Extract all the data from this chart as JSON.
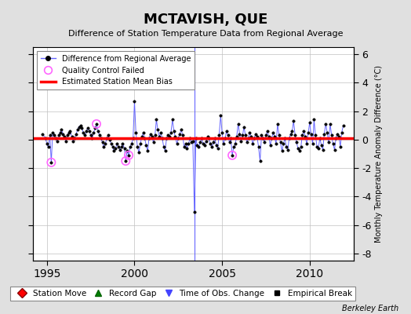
{
  "title": "MCTAVISH, QUE",
  "subtitle": "Difference of Station Temperature Data from Regional Average",
  "ylabel_right": "Monthly Temperature Anomaly Difference (°C)",
  "xlim": [
    1994.2,
    2012.5
  ],
  "ylim": [
    -8.5,
    6.5
  ],
  "yticks": [
    -8,
    -6,
    -4,
    -2,
    0,
    2,
    4,
    6
  ],
  "xticks": [
    1995,
    2000,
    2005,
    2010
  ],
  "background_color": "#e0e0e0",
  "plot_bg_color": "#ffffff",
  "grid_color": "#c0c0c0",
  "bias_value": 0.08,
  "time_of_obs_change_year": 2003.42,
  "qc_failed_points": [
    [
      1995.25,
      -1.6
    ],
    [
      1997.83,
      1.1
    ],
    [
      1999.5,
      -1.5
    ],
    [
      1999.67,
      -1.1
    ],
    [
      2005.58,
      -1.1
    ]
  ],
  "data": [
    [
      1994.75,
      0.4
    ],
    [
      1994.92,
      0.1
    ],
    [
      1995.0,
      -0.3
    ],
    [
      1995.08,
      -0.5
    ],
    [
      1995.17,
      0.3
    ],
    [
      1995.25,
      -1.6
    ],
    [
      1995.33,
      0.5
    ],
    [
      1995.42,
      0.3
    ],
    [
      1995.5,
      0.1
    ],
    [
      1995.58,
      -0.1
    ],
    [
      1995.67,
      0.3
    ],
    [
      1995.75,
      0.5
    ],
    [
      1995.83,
      0.7
    ],
    [
      1995.92,
      0.4
    ],
    [
      1996.0,
      0.2
    ],
    [
      1996.08,
      -0.1
    ],
    [
      1996.17,
      0.3
    ],
    [
      1996.25,
      0.5
    ],
    [
      1996.33,
      0.6
    ],
    [
      1996.42,
      0.2
    ],
    [
      1996.5,
      -0.1
    ],
    [
      1996.58,
      0.1
    ],
    [
      1996.67,
      0.4
    ],
    [
      1996.75,
      0.7
    ],
    [
      1996.83,
      0.9
    ],
    [
      1996.92,
      1.0
    ],
    [
      1997.0,
      0.8
    ],
    [
      1997.08,
      0.5
    ],
    [
      1997.17,
      0.3
    ],
    [
      1997.25,
      0.6
    ],
    [
      1997.33,
      0.8
    ],
    [
      1997.42,
      0.6
    ],
    [
      1997.5,
      0.3
    ],
    [
      1997.58,
      0.1
    ],
    [
      1997.67,
      0.5
    ],
    [
      1997.75,
      0.8
    ],
    [
      1997.83,
      1.1
    ],
    [
      1997.92,
      0.6
    ],
    [
      1998.0,
      0.3
    ],
    [
      1998.08,
      0.1
    ],
    [
      1998.17,
      -0.2
    ],
    [
      1998.25,
      -0.5
    ],
    [
      1998.33,
      -0.3
    ],
    [
      1998.42,
      0.1
    ],
    [
      1998.5,
      0.3
    ],
    [
      1998.58,
      0.0
    ],
    [
      1998.67,
      -0.3
    ],
    [
      1998.75,
      -0.5
    ],
    [
      1998.83,
      -0.8
    ],
    [
      1998.92,
      -0.6
    ],
    [
      1999.0,
      -0.3
    ],
    [
      1999.08,
      -0.5
    ],
    [
      1999.17,
      -0.7
    ],
    [
      1999.25,
      -0.5
    ],
    [
      1999.33,
      -0.3
    ],
    [
      1999.42,
      -0.6
    ],
    [
      1999.5,
      -1.5
    ],
    [
      1999.58,
      -0.8
    ],
    [
      1999.67,
      -1.1
    ],
    [
      1999.75,
      -0.5
    ],
    [
      1999.83,
      -0.3
    ],
    [
      1999.92,
      0.1
    ],
    [
      2000.0,
      2.7
    ],
    [
      2000.08,
      0.5
    ],
    [
      2000.17,
      -0.5
    ],
    [
      2000.25,
      -0.9
    ],
    [
      2000.33,
      -0.3
    ],
    [
      2000.42,
      0.2
    ],
    [
      2000.5,
      0.5
    ],
    [
      2000.58,
      0.1
    ],
    [
      2000.67,
      -0.4
    ],
    [
      2000.75,
      -0.8
    ],
    [
      2000.83,
      0.1
    ],
    [
      2000.92,
      0.4
    ],
    [
      2001.0,
      0.2
    ],
    [
      2001.08,
      -0.2
    ],
    [
      2001.17,
      0.3
    ],
    [
      2001.25,
      1.4
    ],
    [
      2001.33,
      0.7
    ],
    [
      2001.42,
      0.2
    ],
    [
      2001.5,
      0.5
    ],
    [
      2001.58,
      0.1
    ],
    [
      2001.67,
      -0.5
    ],
    [
      2001.75,
      -0.8
    ],
    [
      2001.83,
      0.1
    ],
    [
      2001.92,
      0.3
    ],
    [
      2002.0,
      0.2
    ],
    [
      2002.08,
      0.5
    ],
    [
      2002.17,
      1.4
    ],
    [
      2002.25,
      0.6
    ],
    [
      2002.33,
      0.2
    ],
    [
      2002.42,
      -0.3
    ],
    [
      2002.5,
      0.1
    ],
    [
      2002.58,
      0.4
    ],
    [
      2002.67,
      0.7
    ],
    [
      2002.75,
      0.3
    ],
    [
      2002.83,
      -0.5
    ],
    [
      2002.92,
      -0.3
    ],
    [
      2003.0,
      -0.6
    ],
    [
      2003.08,
      -0.3
    ],
    [
      2003.17,
      0.1
    ],
    [
      2003.25,
      -0.2
    ],
    [
      2003.33,
      -0.1
    ],
    [
      2003.42,
      -5.1
    ],
    [
      2003.5,
      0.1
    ],
    [
      2003.58,
      -0.4
    ],
    [
      2003.67,
      -0.5
    ],
    [
      2003.75,
      -0.2
    ],
    [
      2003.83,
      0.1
    ],
    [
      2003.92,
      -0.3
    ],
    [
      2004.0,
      -0.4
    ],
    [
      2004.08,
      -0.1
    ],
    [
      2004.17,
      0.2
    ],
    [
      2004.25,
      0.1
    ],
    [
      2004.33,
      -0.3
    ],
    [
      2004.42,
      -0.5
    ],
    [
      2004.5,
      -0.2
    ],
    [
      2004.58,
      0.1
    ],
    [
      2004.67,
      -0.4
    ],
    [
      2004.75,
      -0.6
    ],
    [
      2004.83,
      0.3
    ],
    [
      2004.92,
      1.7
    ],
    [
      2005.0,
      0.5
    ],
    [
      2005.08,
      -0.3
    ],
    [
      2005.17,
      0.1
    ],
    [
      2005.25,
      0.6
    ],
    [
      2005.33,
      0.3
    ],
    [
      2005.42,
      -0.2
    ],
    [
      2005.5,
      0.1
    ],
    [
      2005.58,
      -1.1
    ],
    [
      2005.67,
      -0.5
    ],
    [
      2005.75,
      -0.3
    ],
    [
      2005.83,
      0.2
    ],
    [
      2005.92,
      1.1
    ],
    [
      2006.0,
      0.4
    ],
    [
      2006.08,
      -0.1
    ],
    [
      2006.17,
      0.3
    ],
    [
      2006.25,
      0.9
    ],
    [
      2006.33,
      0.3
    ],
    [
      2006.42,
      -0.2
    ],
    [
      2006.5,
      0.1
    ],
    [
      2006.58,
      0.5
    ],
    [
      2006.67,
      0.2
    ],
    [
      2006.75,
      -0.3
    ],
    [
      2006.83,
      0.1
    ],
    [
      2006.92,
      0.4
    ],
    [
      2007.0,
      0.2
    ],
    [
      2007.08,
      -0.5
    ],
    [
      2007.17,
      -1.5
    ],
    [
      2007.25,
      0.3
    ],
    [
      2007.33,
      0.1
    ],
    [
      2007.42,
      -0.2
    ],
    [
      2007.5,
      0.3
    ],
    [
      2007.58,
      0.6
    ],
    [
      2007.67,
      0.2
    ],
    [
      2007.75,
      -0.4
    ],
    [
      2007.83,
      0.1
    ],
    [
      2007.92,
      0.5
    ],
    [
      2008.0,
      0.2
    ],
    [
      2008.08,
      -0.3
    ],
    [
      2008.17,
      1.1
    ],
    [
      2008.25,
      0.3
    ],
    [
      2008.33,
      -0.2
    ],
    [
      2008.42,
      -0.8
    ],
    [
      2008.5,
      -0.3
    ],
    [
      2008.58,
      0.1
    ],
    [
      2008.67,
      -0.5
    ],
    [
      2008.75,
      -0.7
    ],
    [
      2008.83,
      0.1
    ],
    [
      2008.92,
      0.4
    ],
    [
      2009.0,
      0.6
    ],
    [
      2009.08,
      1.3
    ],
    [
      2009.17,
      0.3
    ],
    [
      2009.25,
      -0.2
    ],
    [
      2009.33,
      -0.6
    ],
    [
      2009.42,
      -0.8
    ],
    [
      2009.5,
      -0.5
    ],
    [
      2009.58,
      0.3
    ],
    [
      2009.67,
      0.6
    ],
    [
      2009.75,
      0.2
    ],
    [
      2009.83,
      -0.3
    ],
    [
      2009.92,
      0.5
    ],
    [
      2010.0,
      1.2
    ],
    [
      2010.08,
      0.4
    ],
    [
      2010.17,
      -0.3
    ],
    [
      2010.25,
      1.4
    ],
    [
      2010.33,
      0.3
    ],
    [
      2010.42,
      -0.5
    ],
    [
      2010.5,
      -0.6
    ],
    [
      2010.58,
      0.1
    ],
    [
      2010.67,
      -0.4
    ],
    [
      2010.75,
      -0.7
    ],
    [
      2010.83,
      0.4
    ],
    [
      2010.92,
      1.1
    ],
    [
      2011.0,
      0.5
    ],
    [
      2011.08,
      -0.2
    ],
    [
      2011.17,
      1.1
    ],
    [
      2011.25,
      0.3
    ],
    [
      2011.33,
      -0.3
    ],
    [
      2011.42,
      -0.7
    ],
    [
      2011.5,
      0.1
    ],
    [
      2011.58,
      0.4
    ],
    [
      2011.67,
      0.2
    ],
    [
      2011.75,
      -0.5
    ],
    [
      2011.83,
      0.5
    ],
    [
      2011.92,
      1.0
    ]
  ]
}
